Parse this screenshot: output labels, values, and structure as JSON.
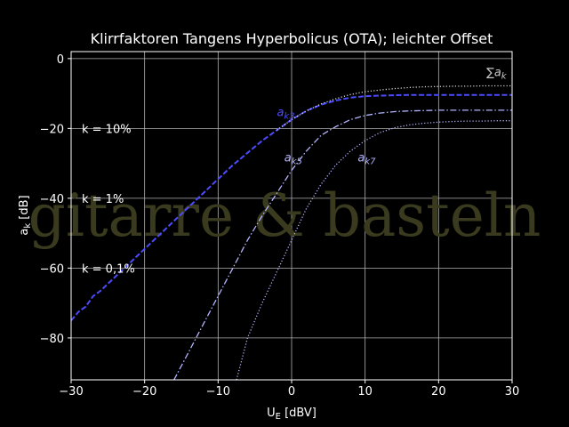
{
  "chart_data": {
    "type": "line",
    "title": "Klirrfaktoren Tangens Hyperbolicus (OTA); leichter Offset",
    "xlabel": "U_E [dBV]",
    "ylabel": "a_k [dB]",
    "xlim": [
      -30,
      30
    ],
    "ylim": [
      -92,
      2
    ],
    "xticks": [
      -30,
      -20,
      -10,
      0,
      10,
      20,
      30
    ],
    "yticks": [
      0,
      -20,
      -40,
      -60,
      -80
    ],
    "grid": true,
    "background": "#000000",
    "watermark": "gitarre & basteln",
    "series": [
      {
        "name": "a_k3",
        "color": "#4b4bff",
        "style": "dashed",
        "x": [
          -30,
          -29,
          -28,
          -27,
          -26,
          -25,
          -24,
          -22,
          -20,
          -18,
          -16,
          -14,
          -12,
          -10,
          -8,
          -6,
          -4,
          -2,
          0,
          2,
          4,
          6,
          8,
          10,
          12,
          14,
          16,
          18,
          20,
          22,
          24,
          26,
          28,
          30
        ],
        "y": [
          -75,
          -72.5,
          -71,
          -68,
          -66.5,
          -64.5,
          -62.5,
          -58.5,
          -54.5,
          -50.5,
          -46.5,
          -42.5,
          -38.5,
          -34.5,
          -30.5,
          -27,
          -23.5,
          -20.5,
          -17.5,
          -15,
          -13.2,
          -12,
          -11.2,
          -10.8,
          -10.6,
          -10.5,
          -10.4,
          -10.4,
          -10.4,
          -10.4,
          -10.4,
          -10.4,
          -10.4,
          -10.4
        ]
      },
      {
        "name": "sum a_k",
        "color": "#d8d8d8",
        "style": "dotted",
        "x": [
          -2,
          0,
          2,
          4,
          6,
          8,
          10,
          12,
          14,
          16,
          18,
          20,
          22,
          24,
          26,
          28,
          30
        ],
        "y": [
          -20.5,
          -17.5,
          -15,
          -13,
          -11.5,
          -10.3,
          -9.5,
          -9,
          -8.6,
          -8.3,
          -8.1,
          -8,
          -7.9,
          -7.9,
          -7.8,
          -7.8,
          -7.8
        ]
      },
      {
        "name": "a_k5",
        "color": "#b4b4ff",
        "style": "dashdot",
        "x": [
          -16,
          -14,
          -12,
          -10,
          -8,
          -6,
          -4,
          -2,
          0,
          2,
          4,
          6,
          8,
          10,
          12,
          14,
          16,
          18,
          20,
          22,
          24,
          26,
          28,
          30
        ],
        "y": [
          -92,
          -84,
          -76,
          -68,
          -60,
          -52,
          -45,
          -38.5,
          -32,
          -26.5,
          -22,
          -19.5,
          -17.5,
          -16.3,
          -15.6,
          -15.2,
          -15,
          -14.9,
          -14.8,
          -14.8,
          -14.8,
          -14.8,
          -14.8,
          -14.8
        ]
      },
      {
        "name": "a_k7",
        "color": "#b4b4ff",
        "style": "dotted",
        "x": [
          -7.5,
          -6,
          -4,
          -2,
          0,
          2,
          4,
          6,
          8,
          10,
          12,
          14,
          16,
          18,
          20,
          22,
          24,
          26,
          28,
          30
        ],
        "y": [
          -92,
          -80,
          -70,
          -61,
          -52,
          -43,
          -36,
          -30.5,
          -26.5,
          -23.5,
          -21.2,
          -19.8,
          -19,
          -18.5,
          -18.2,
          -18,
          -17.9,
          -17.9,
          -17.8,
          -17.8
        ]
      }
    ],
    "annotations": [
      {
        "label": "a",
        "sub": "k3",
        "x": -2,
        "y": -16.5,
        "color": "#4b4bff"
      },
      {
        "label": "a",
        "sub": "k5",
        "x": -1,
        "y": -29.5,
        "color": "#b4b4ff"
      },
      {
        "label": "a",
        "sub": "k7",
        "x": 9,
        "y": -29.5,
        "color": "#b4b4ff"
      },
      {
        "label": "∑a",
        "sub": "k",
        "x": 26.5,
        "y": -5,
        "color": "#c8c8c8"
      }
    ],
    "k_labels": [
      {
        "text": "k = 10%",
        "y": -20
      },
      {
        "text": "k = 1%",
        "y": -40
      },
      {
        "text": "k = 0,1%",
        "y": -60
      }
    ]
  }
}
